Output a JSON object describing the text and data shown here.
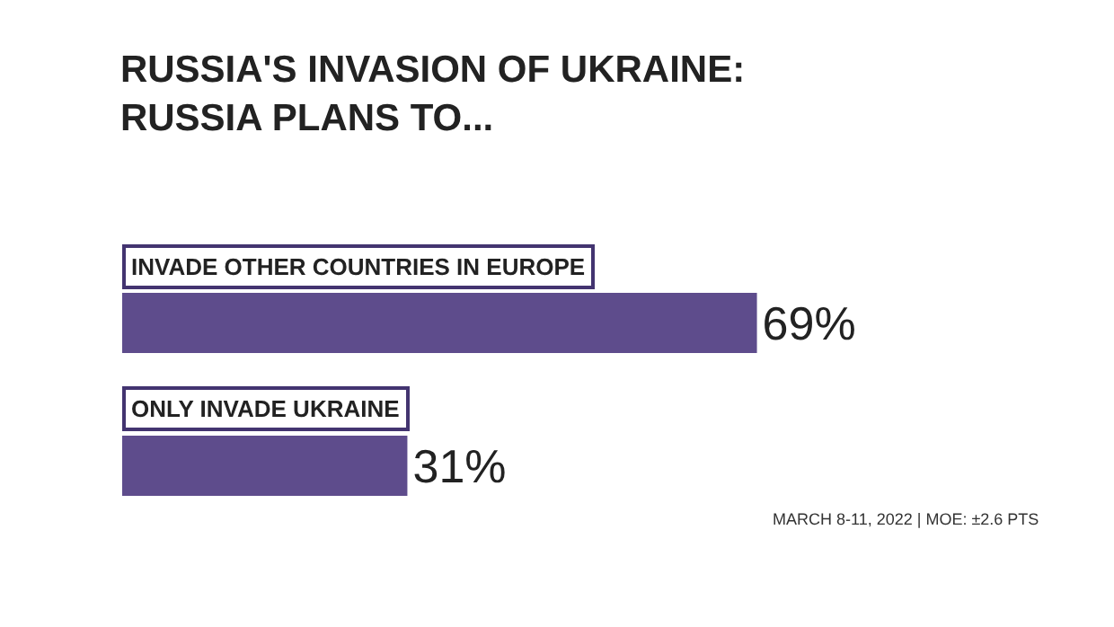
{
  "chart_data": {
    "type": "bar",
    "orientation": "horizontal",
    "title": "RUSSIA'S INVASION OF UKRAINE:\nRUSSIA PLANS TO...",
    "categories": [
      "INVADE OTHER COUNTRIES IN EUROPE",
      "ONLY INVADE UKRAINE"
    ],
    "values": [
      69,
      31
    ],
    "value_labels": [
      "69%",
      "31%"
    ],
    "color": "#5e4c8c",
    "annotations": [
      "MARCH 8-11, 2022 | MOE: ±2.6 PTS"
    ]
  }
}
